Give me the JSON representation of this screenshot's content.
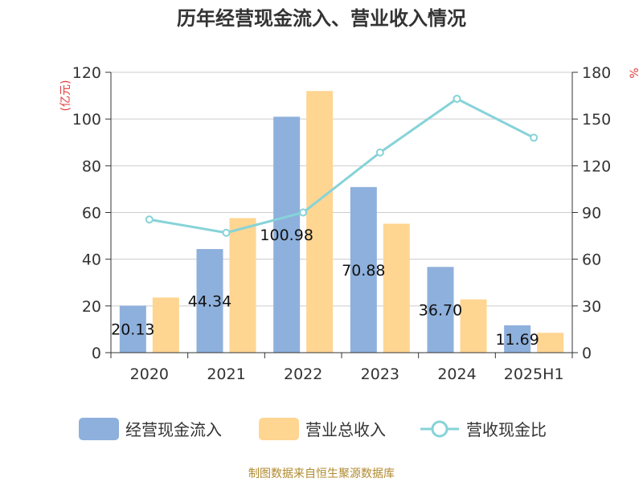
{
  "title": "历年经营现金流入、营业收入情况",
  "source": "制图数据来自恒生聚源数据库",
  "colors": {
    "cash_bar": "#8eb0dc",
    "revenue_bar": "#ffd592",
    "ratio_line": "#86d3d8",
    "axis": "#333333",
    "grid": "#cccccc",
    "unit": "#e23b3b",
    "source": "#b08a2e"
  },
  "chart_data": {
    "type": "bar",
    "categories": [
      "2020",
      "2021",
      "2022",
      "2023",
      "2024",
      "2025H1"
    ],
    "left_axis": {
      "unit_label": "(亿元)",
      "ylim": [
        0,
        120
      ],
      "ticks": [
        "0",
        "20",
        "40",
        "60",
        "80",
        "100",
        "120"
      ]
    },
    "right_axis": {
      "unit_label": "%",
      "ylim": [
        0,
        180
      ],
      "ticks": [
        "0",
        "30",
        "60",
        "90",
        "120",
        "150",
        "180"
      ]
    },
    "grid": true,
    "legend_position": "bottom",
    "series": [
      {
        "name": "经营现金流入",
        "type": "bar",
        "axis": "left",
        "values": [
          20.13,
          44.34,
          100.98,
          70.88,
          36.7,
          11.69
        ],
        "data_labels": [
          "20.13",
          "44.34",
          "100.98",
          "70.88",
          "36.70",
          "11.69"
        ]
      },
      {
        "name": "营业总收入",
        "type": "bar",
        "axis": "left",
        "values": [
          23.6,
          57.6,
          112.0,
          55.2,
          22.8,
          8.5
        ]
      },
      {
        "name": "营收现金比",
        "type": "line",
        "axis": "right",
        "values": [
          85.5,
          77.0,
          90.0,
          128.5,
          163.0,
          138.0
        ]
      }
    ]
  }
}
